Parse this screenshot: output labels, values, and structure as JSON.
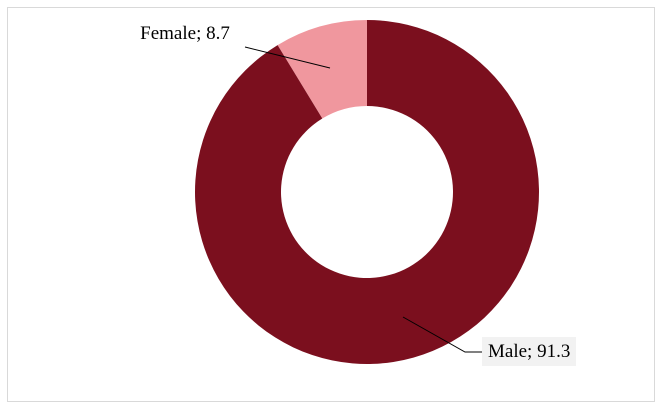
{
  "chart_data": {
    "type": "donut",
    "categories": [
      "Female",
      "Male"
    ],
    "values": [
      8.7,
      91.3
    ],
    "value_labels": [
      "Female; 8.7",
      "Male; 91.3"
    ],
    "colors": [
      "#f0979e",
      "#7b0f1e"
    ]
  }
}
